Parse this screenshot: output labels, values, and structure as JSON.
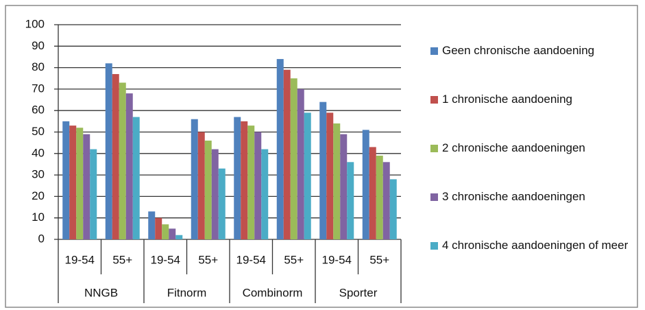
{
  "chart_data": {
    "type": "bar",
    "categories": [
      "19-54",
      "55+",
      "19-54",
      "55+",
      "19-54",
      "55+",
      "19-54",
      "55+"
    ],
    "category_groups": [
      "NNGB",
      "Fitnorm",
      "Combinorm",
      "Sporter"
    ],
    "series": [
      {
        "name": "Geen chronische aandoening",
        "color": "#4f81bd",
        "values": [
          55,
          82,
          13,
          56,
          57,
          84,
          64,
          51
        ]
      },
      {
        "name": "1 chronische aandoening",
        "color": "#c0504d",
        "values": [
          53,
          77,
          10,
          50,
          55,
          79,
          59,
          43
        ]
      },
      {
        "name": "2 chronische aandoeningen",
        "color": "#9bbb59",
        "values": [
          52,
          73,
          7,
          46,
          53,
          75,
          54,
          39
        ]
      },
      {
        "name": "3 chronische aandoeningen",
        "color": "#8064a2",
        "values": [
          49,
          68,
          5,
          42,
          50,
          70,
          49,
          36
        ]
      },
      {
        "name": "4 chronische aandoeningen of meer",
        "color": "#4bacc6",
        "values": [
          42,
          57,
          2,
          33,
          42,
          59,
          36,
          28
        ]
      }
    ],
    "ylim": [
      0,
      100
    ],
    "yticks": [
      0,
      10,
      20,
      30,
      40,
      50,
      60,
      70,
      80,
      90,
      100
    ],
    "grid": true,
    "legend": "right"
  }
}
